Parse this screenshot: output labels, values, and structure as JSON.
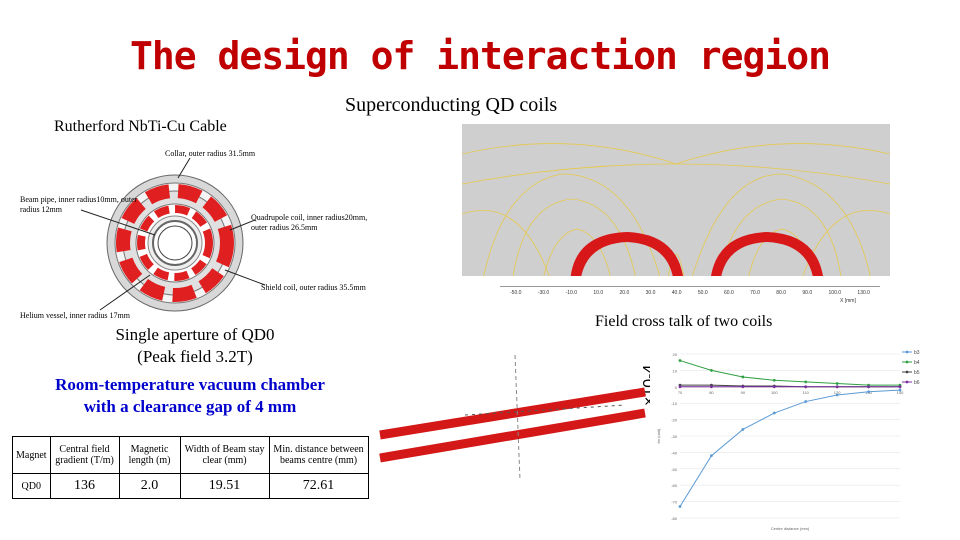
{
  "title": "The design of interaction region",
  "labels": {
    "superconducting": "Superconducting QD coils",
    "rutherford": "Rutherford NbTi-Cu Cable",
    "field_cross_talk": "Field cross talk of two coils",
    "single_aperture": "Single aperture of QD0",
    "peak_field": "(Peak field 3.2T)",
    "vacuum_chamber": "Room-temperature vacuum chamber",
    "clearance_gap": "with a clearance gap of 4 mm",
    "multiplier": "×10-4"
  },
  "coil_diagram": {
    "collar": "Collar, outer radius 31.5mm",
    "beam_pipe_1": "Beam pipe, inner radius10mm, outer",
    "beam_pipe_2": "radius 12mm",
    "quad_coil_1": "Quadrupole coil, inner radius20mm,",
    "quad_coil_2": "outer radius 26.5mm",
    "shield_coil": "Shield coil, outer radius 35.5mm",
    "helium_vessel": "Helium vessel, inner radius 17mm"
  },
  "table": {
    "headers": [
      "Magnet",
      "Central field gradient (T/m)",
      "Magnetic length (m)",
      "Width of Beam stay clear (mm)",
      "Min. distance between beams centre (mm)"
    ],
    "rows": [
      [
        "QD0",
        "136",
        "2.0",
        "19.51",
        "72.61"
      ]
    ]
  },
  "field_map_axis": {
    "ticks": [
      "-50.0",
      "-30.0",
      "-10.0",
      "10.0",
      "20.0",
      "30.0",
      "40.0",
      "50.0",
      "60.0",
      "70.0",
      "80.0",
      "90.0",
      "100.0",
      "130.0"
    ],
    "unit": "X [mm]"
  },
  "chart_data": {
    "type": "line",
    "xlabel": "Centre distance (mm)",
    "ylabel": "bn (unit)",
    "x": [
      70,
      80,
      90,
      100,
      110,
      120,
      130,
      140
    ],
    "xlim": [
      70,
      140
    ],
    "ylim": [
      -80,
      20
    ],
    "yticks": [
      20,
      10,
      0,
      -10,
      -20,
      -30,
      -40,
      -50,
      -60,
      -70,
      -80
    ],
    "legend_position": "top-right",
    "series": [
      {
        "name": "b3",
        "color": "#5b9bd5",
        "values": [
          -73,
          -42,
          -26,
          -16,
          -9,
          -5,
          -3,
          -2
        ]
      },
      {
        "name": "b4",
        "color": "#2ea043",
        "values": [
          16,
          10,
          6,
          4,
          3,
          2,
          1,
          1
        ]
      },
      {
        "name": "b5",
        "color": "#444444",
        "values": [
          1,
          1,
          0.5,
          0.5,
          0,
          0,
          0,
          0
        ]
      },
      {
        "name": "b6",
        "color": "#7b2fa0",
        "values": [
          0,
          0,
          0,
          0,
          0,
          0,
          0,
          0
        ]
      }
    ]
  }
}
